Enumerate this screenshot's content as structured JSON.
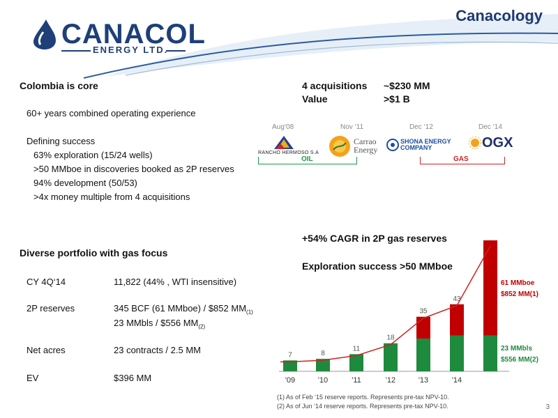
{
  "header": {
    "brand_title": "Canacology",
    "logo": {
      "name": "CANACOL",
      "sub": "ENERGY LTD."
    }
  },
  "left": {
    "colombia_title": "Colombia is core",
    "experience": "60+ years combined operating experience",
    "defining_title": "Defining success",
    "success_items": [
      "63% exploration (15/24 wells)",
      ">50 MMboe in discoveries booked as 2P reserves",
      "94% development (50/53)",
      ">4x money multiple from 4 acquisitions"
    ],
    "portfolio_title": "Diverse portfolio with gas focus",
    "portfolio_rows": [
      {
        "label": "CY 4Q‘14",
        "value": "11,822 (44% , WTI insensitive)"
      },
      {
        "label": "2P reserves",
        "value": "345 BCF (61 MMboe) / $852 MM",
        "sup": "(1)"
      },
      {
        "label": "",
        "value": "23 MMbls / $556 MM",
        "sup": "(2)"
      },
      {
        "label": "Net acres",
        "value": "23 contracts / 2.5 MM"
      },
      {
        "label": "EV",
        "value": "$396 MM"
      }
    ]
  },
  "acquisitions": {
    "line1_label": "4 acquisitions",
    "line1_value": "~$230 MM",
    "line2_label": "Value",
    "line2_value": ">$1 B",
    "items": [
      {
        "date": "Aug‘08",
        "company": "RANCHO HERMOSO S.A"
      },
      {
        "date": "Nov ‘11",
        "company": "Carrao Energy"
      },
      {
        "date": "Dec ‘12",
        "company": "SHONA ENERGY COMPANY"
      },
      {
        "date": "Dec ‘14",
        "company": "OGX"
      }
    ],
    "oil_label": "OIL",
    "gas_label": "GAS"
  },
  "chart_header": {
    "cagr": "+54% CAGR in 2P gas reserves",
    "exploration": "Exploration success >50 MMboe"
  },
  "chart_data": {
    "type": "bar",
    "categories": [
      "'09",
      "'10",
      "'11",
      "'12",
      "'13",
      "'14",
      ""
    ],
    "series": [
      {
        "name": "23 MMbls $556 MM",
        "values": [
          7,
          8,
          11,
          18,
          21,
          23,
          23
        ]
      },
      {
        "name": "61 MMboe $852 MM",
        "values": [
          0,
          0,
          0,
          0,
          14,
          20,
          61
        ]
      }
    ],
    "totals": [
      7,
      8,
      11,
      18,
      35,
      43,
      null
    ],
    "colors": {
      "green": "#1e8a3e",
      "red": "#c00000",
      "line": "#cc2222"
    },
    "ylim": [
      0,
      84
    ],
    "annotation_gas": [
      "61 MMboe",
      "$852 MM",
      "(1)"
    ],
    "annotation_oil": [
      "23 MMbls",
      "$556 MM",
      "(2)"
    ]
  },
  "footnotes": [
    "(1) As of Feb ‘15 reserve reports. Represents pre-tax NPV-10.",
    "(2) As of Jun ‘14 reserve reports. Represents pre-tax NPV-10."
  ],
  "page_number": "3"
}
